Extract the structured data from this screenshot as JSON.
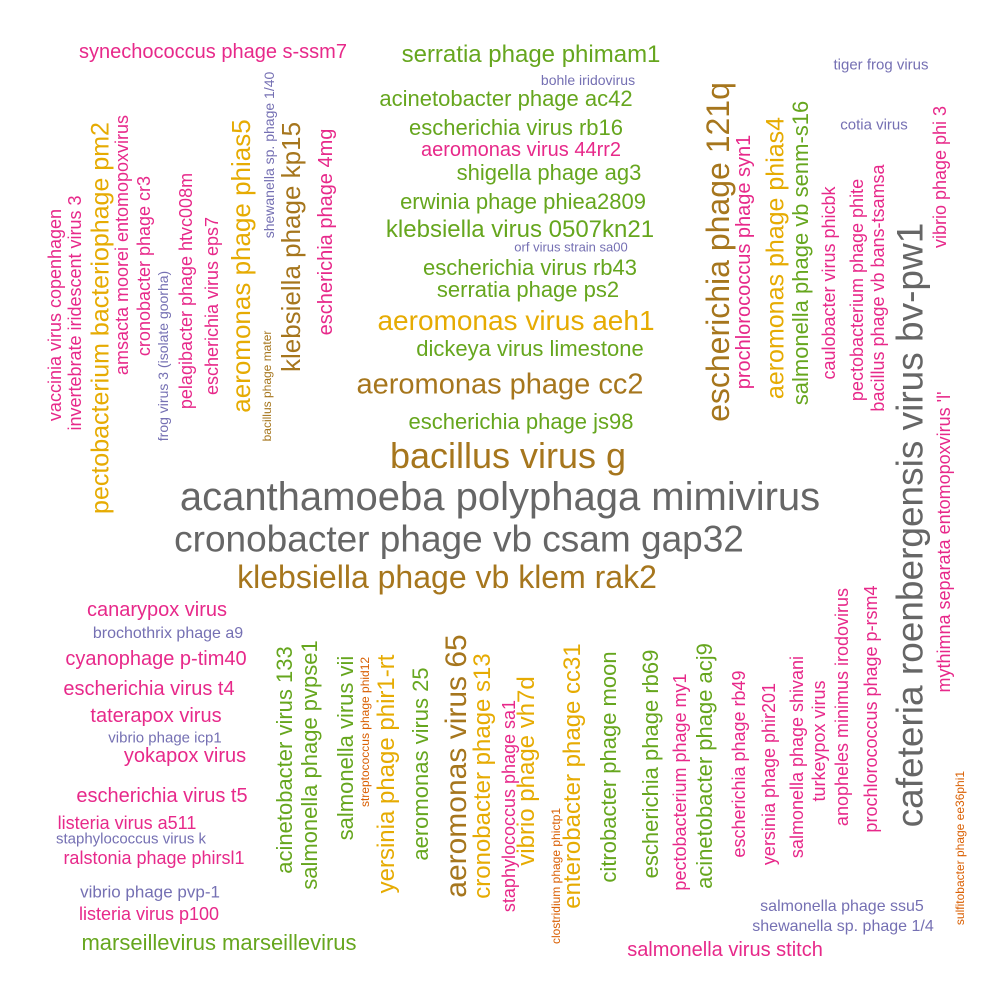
{
  "colors": {
    "gray": "#666666",
    "brown": "#a6761d",
    "gold": "#e6ab02",
    "green": "#66a61e",
    "pink": "#e7298a",
    "purple": "#7570b3",
    "orange": "#d95f02"
  },
  "words": [
    {
      "text": "acanthamoeba polyphaga mimivirus",
      "color": "gray"
    },
    {
      "text": "cronobacter phage vb csam gap32",
      "color": "gray"
    },
    {
      "text": "cafeteria roenbergensis virus bv-pw1",
      "color": "gray"
    },
    {
      "text": "klebsiella phage vb klem rak2",
      "color": "brown"
    },
    {
      "text": "bacillus virus g",
      "color": "brown"
    },
    {
      "text": "aeromonas phage cc2",
      "color": "brown"
    },
    {
      "text": "escherichia phage 121q",
      "color": "brown"
    },
    {
      "text": "klebsiella phage kp15",
      "color": "brown"
    },
    {
      "text": "aeromonas virus 65",
      "color": "brown"
    },
    {
      "text": "aeromonas virus aeh1",
      "color": "gold"
    },
    {
      "text": "aeromonas phage phias5",
      "color": "gold"
    },
    {
      "text": "aeromonas phage phias4",
      "color": "gold"
    },
    {
      "text": "pectobacterium bacteriophage pm2",
      "color": "gold"
    },
    {
      "text": "cronobacter phage s13",
      "color": "gold"
    },
    {
      "text": "yersinia phage phir1-rt",
      "color": "gold"
    },
    {
      "text": "vibrio phage vh7d",
      "color": "gold"
    },
    {
      "text": "enterobacter phage cc31",
      "color": "gold"
    },
    {
      "text": "bacillus phage mater",
      "color": "brown"
    },
    {
      "text": "streptococcus phage phid12",
      "color": "orange"
    },
    {
      "text": "clostridium phage phictp1",
      "color": "orange"
    },
    {
      "text": "sulfitobacter phage ee36phi1",
      "color": "orange"
    },
    {
      "text": "serratia phage phimam1",
      "color": "green"
    },
    {
      "text": "acinetobacter phage ac42",
      "color": "green"
    },
    {
      "text": "escherichia virus rb16",
      "color": "green"
    },
    {
      "text": "shigella phage ag3",
      "color": "green"
    },
    {
      "text": "erwinia phage phiea2809",
      "color": "green"
    },
    {
      "text": "klebsiella virus 0507kn21",
      "color": "green"
    },
    {
      "text": "escherichia virus rb43",
      "color": "green"
    },
    {
      "text": "serratia phage ps2",
      "color": "green"
    },
    {
      "text": "dickeya virus limestone",
      "color": "green"
    },
    {
      "text": "escherichia phage js98",
      "color": "green"
    },
    {
      "text": "salmonella phage vb senm-s16",
      "color": "green"
    },
    {
      "text": "marseillevirus marseillevirus",
      "color": "green"
    },
    {
      "text": "acinetobacter virus 133",
      "color": "green"
    },
    {
      "text": "salmonella phage pvpse1",
      "color": "green"
    },
    {
      "text": "salmonella virus vii",
      "color": "green"
    },
    {
      "text": "aeromonas virus 25",
      "color": "green"
    },
    {
      "text": "citrobacter phage moon",
      "color": "green"
    },
    {
      "text": "escherichia phage rb69",
      "color": "green"
    },
    {
      "text": "acinetobacter phage acj9",
      "color": "green"
    },
    {
      "text": "synechococcus phage s-ssm7",
      "color": "pink"
    },
    {
      "text": "aeromonas virus 44rr2",
      "color": "pink"
    },
    {
      "text": "escherichia phage 4mg",
      "color": "pink"
    },
    {
      "text": "prochlorococcus phage syn1",
      "color": "pink"
    },
    {
      "text": "vaccinia virus copenhagen",
      "color": "pink"
    },
    {
      "text": "invertebrate iridescent virus 3",
      "color": "pink"
    },
    {
      "text": "amsacta moorei entomopoxvirus",
      "color": "pink"
    },
    {
      "text": "cronobacter phage cr3",
      "color": "pink"
    },
    {
      "text": "pelagibacter phage htvc008m",
      "color": "pink"
    },
    {
      "text": "escherichia virus eps7",
      "color": "pink"
    },
    {
      "text": "caulobacter virus phicbk",
      "color": "pink"
    },
    {
      "text": "pectobacterium phage phite",
      "color": "pink"
    },
    {
      "text": "bacillus phage vb bans-tsamsa",
      "color": "pink"
    },
    {
      "text": "mythimna separata entomopoxvirus 'l'",
      "color": "pink"
    },
    {
      "text": "vibrio phage phi 3",
      "color": "pink"
    },
    {
      "text": "canarypox virus",
      "color": "pink"
    },
    {
      "text": "cyanophage p-tim40",
      "color": "pink"
    },
    {
      "text": "escherichia virus t4",
      "color": "pink"
    },
    {
      "text": "taterapox virus",
      "color": "pink"
    },
    {
      "text": "yokapox virus",
      "color": "pink"
    },
    {
      "text": "escherichia virus t5",
      "color": "pink"
    },
    {
      "text": "listeria virus a511",
      "color": "pink"
    },
    {
      "text": "ralstonia phage phirsl1",
      "color": "pink"
    },
    {
      "text": "listeria virus p100",
      "color": "pink"
    },
    {
      "text": "staphylococcus phage sa1",
      "color": "pink"
    },
    {
      "text": "pectobacterium phage my1",
      "color": "pink"
    },
    {
      "text": "escherichia phage rb49",
      "color": "pink"
    },
    {
      "text": "yersinia phage phir201",
      "color": "pink"
    },
    {
      "text": "salmonella phage shivani",
      "color": "pink"
    },
    {
      "text": "turkeypox virus",
      "color": "pink"
    },
    {
      "text": "anopheles minimus irodovirus",
      "color": "pink"
    },
    {
      "text": "prochlorococcus phage p-rsm4",
      "color": "pink"
    },
    {
      "text": "salmonella virus stitch",
      "color": "pink"
    },
    {
      "text": "bohle iridovirus",
      "color": "purple"
    },
    {
      "text": "tiger frog virus",
      "color": "purple"
    },
    {
      "text": "cotia virus",
      "color": "purple"
    },
    {
      "text": "orf virus strain sa00",
      "color": "purple"
    },
    {
      "text": "shewanella sp. phage 1/40",
      "color": "purple"
    },
    {
      "text": "frog virus 3 (isolate goorha)",
      "color": "purple"
    },
    {
      "text": "brochothrix phage a9",
      "color": "purple"
    },
    {
      "text": "vibrio phage icp1",
      "color": "purple"
    },
    {
      "text": "staphylococcus virus k",
      "color": "purple"
    },
    {
      "text": "vibrio phage pvp-1",
      "color": "purple"
    },
    {
      "text": "salmonella phage ssu5",
      "color": "purple"
    },
    {
      "text": "shewanella sp. phage 1/4",
      "color": "purple"
    }
  ]
}
